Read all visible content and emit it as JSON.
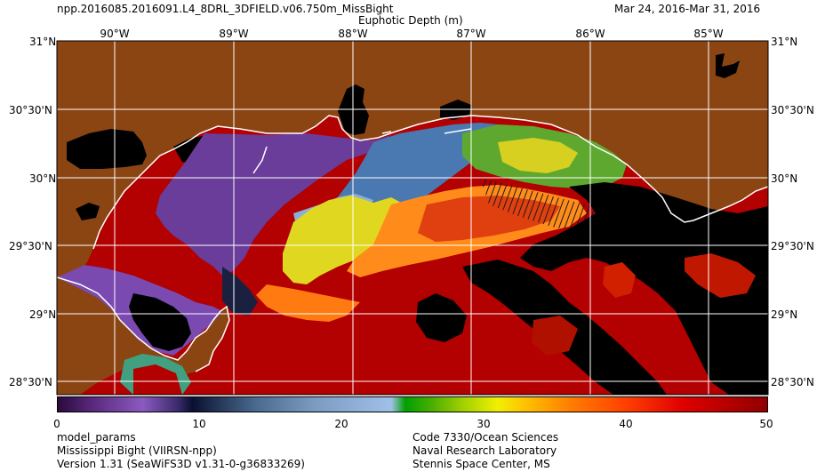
{
  "header": {
    "file_name": "npp.2016085.2016091.L4_8DRL_3DFIELD.v06.750m_MissBight",
    "date_range": "Mar 24, 2016-Mar 31, 2016",
    "product": "Euphotic Depth (m)"
  },
  "map": {
    "lon_labels": [
      "90°W",
      "89°W",
      "88°W",
      "87°W",
      "86°W",
      "85°W"
    ],
    "lat_labels": [
      "31°N",
      "30°30'N",
      "30°N",
      "29°30'N",
      "29°N",
      "28°30'N"
    ],
    "colors": {
      "land": "#8B4513",
      "coast": "#ffffff",
      "grid": "#ffffff",
      "nodata": "#000000"
    }
  },
  "colorbar": {
    "ticks": [
      "0",
      "10",
      "20",
      "30",
      "40",
      "50"
    ],
    "min": 0,
    "max": 50
  },
  "footer": {
    "left": [
      "model_params",
      "Mississippi Bight (VIIRSN-npp)",
      "Version 1.31 (SeaWiFS3D v1.31-0-g36833269)"
    ],
    "right": [
      "Code 7330/Ocean Sciences",
      "Naval Research Laboratory",
      "Stennis Space Center, MS"
    ]
  }
}
